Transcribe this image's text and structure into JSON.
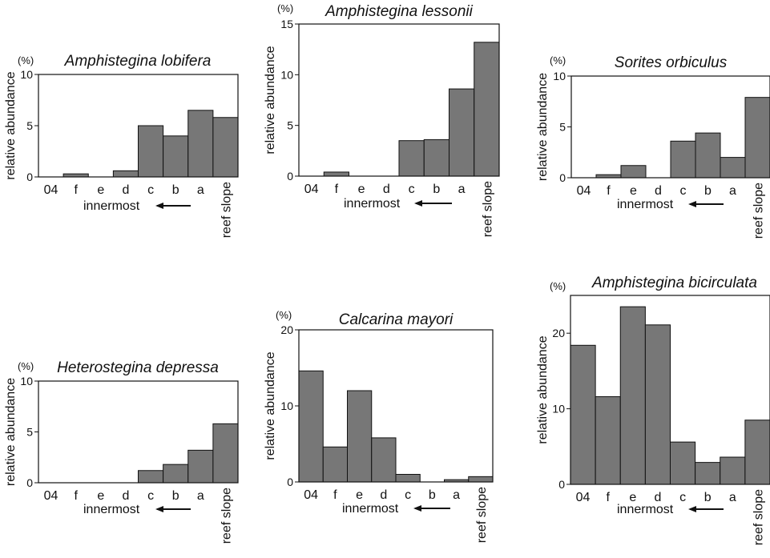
{
  "ylabel": "relative abundance",
  "unit": "(%)",
  "direction_label": "innermost",
  "bar_color": "#777777",
  "chart_data": [
    {
      "type": "bar",
      "title": "Amphistegina lobifera",
      "categories": [
        "04",
        "f",
        "e",
        "d",
        "c",
        "b",
        "a",
        "reef slope"
      ],
      "values": [
        0,
        0.3,
        0,
        0.6,
        5.0,
        4.0,
        6.5,
        5.8
      ],
      "ylim": [
        0,
        10
      ],
      "yticks": [
        0,
        5,
        10
      ],
      "ylabel": "relative abundance",
      "grid": false,
      "legend": "none"
    },
    {
      "type": "bar",
      "title": "Amphistegina lessonii",
      "categories": [
        "04",
        "f",
        "e",
        "d",
        "c",
        "b",
        "a",
        "reef slope"
      ],
      "values": [
        0,
        0.4,
        0,
        0,
        3.5,
        3.6,
        8.6,
        13.2
      ],
      "ylim": [
        0,
        15
      ],
      "yticks": [
        0,
        5,
        10,
        15
      ],
      "ylabel": "relative abundance",
      "grid": false,
      "legend": "none"
    },
    {
      "type": "bar",
      "title": "Sorites orbiculus",
      "categories": [
        "04",
        "f",
        "e",
        "d",
        "c",
        "b",
        "a",
        "reef slope"
      ],
      "values": [
        0,
        0.3,
        1.2,
        0,
        3.6,
        4.4,
        2.0,
        7.9
      ],
      "ylim": [
        0,
        10
      ],
      "yticks": [
        0,
        5,
        10
      ],
      "ylabel": "relative abundance",
      "grid": false,
      "legend": "none"
    },
    {
      "type": "bar",
      "title": "Heterostegina depressa",
      "categories": [
        "04",
        "f",
        "e",
        "d",
        "c",
        "b",
        "a",
        "reef slope"
      ],
      "values": [
        0,
        0,
        0,
        0,
        1.2,
        1.8,
        3.2,
        5.8
      ],
      "ylim": [
        0,
        10
      ],
      "yticks": [
        0,
        5,
        10
      ],
      "ylabel": "relative abundance",
      "grid": false,
      "legend": "none"
    },
    {
      "type": "bar",
      "title": "Calcarina mayori",
      "categories": [
        "04",
        "f",
        "e",
        "d",
        "c",
        "b",
        "a",
        "reef slope"
      ],
      "values": [
        14.6,
        4.6,
        12.0,
        5.8,
        1.0,
        0,
        0.3,
        0.7
      ],
      "ylim": [
        0,
        20
      ],
      "yticks": [
        0,
        10,
        20
      ],
      "ylabel": "relative abundance",
      "grid": false,
      "legend": "none"
    },
    {
      "type": "bar",
      "title": "Amphistegina bicirculata",
      "categories": [
        "04",
        "f",
        "e",
        "d",
        "c",
        "b",
        "a",
        "reef slope"
      ],
      "values": [
        18.4,
        11.6,
        23.5,
        21.1,
        5.6,
        2.9,
        3.6,
        8.5
      ],
      "ylim": [
        0,
        25
      ],
      "yticks": [
        0,
        10,
        20
      ],
      "ylabel": "relative abundance",
      "grid": false,
      "legend": "none"
    }
  ]
}
